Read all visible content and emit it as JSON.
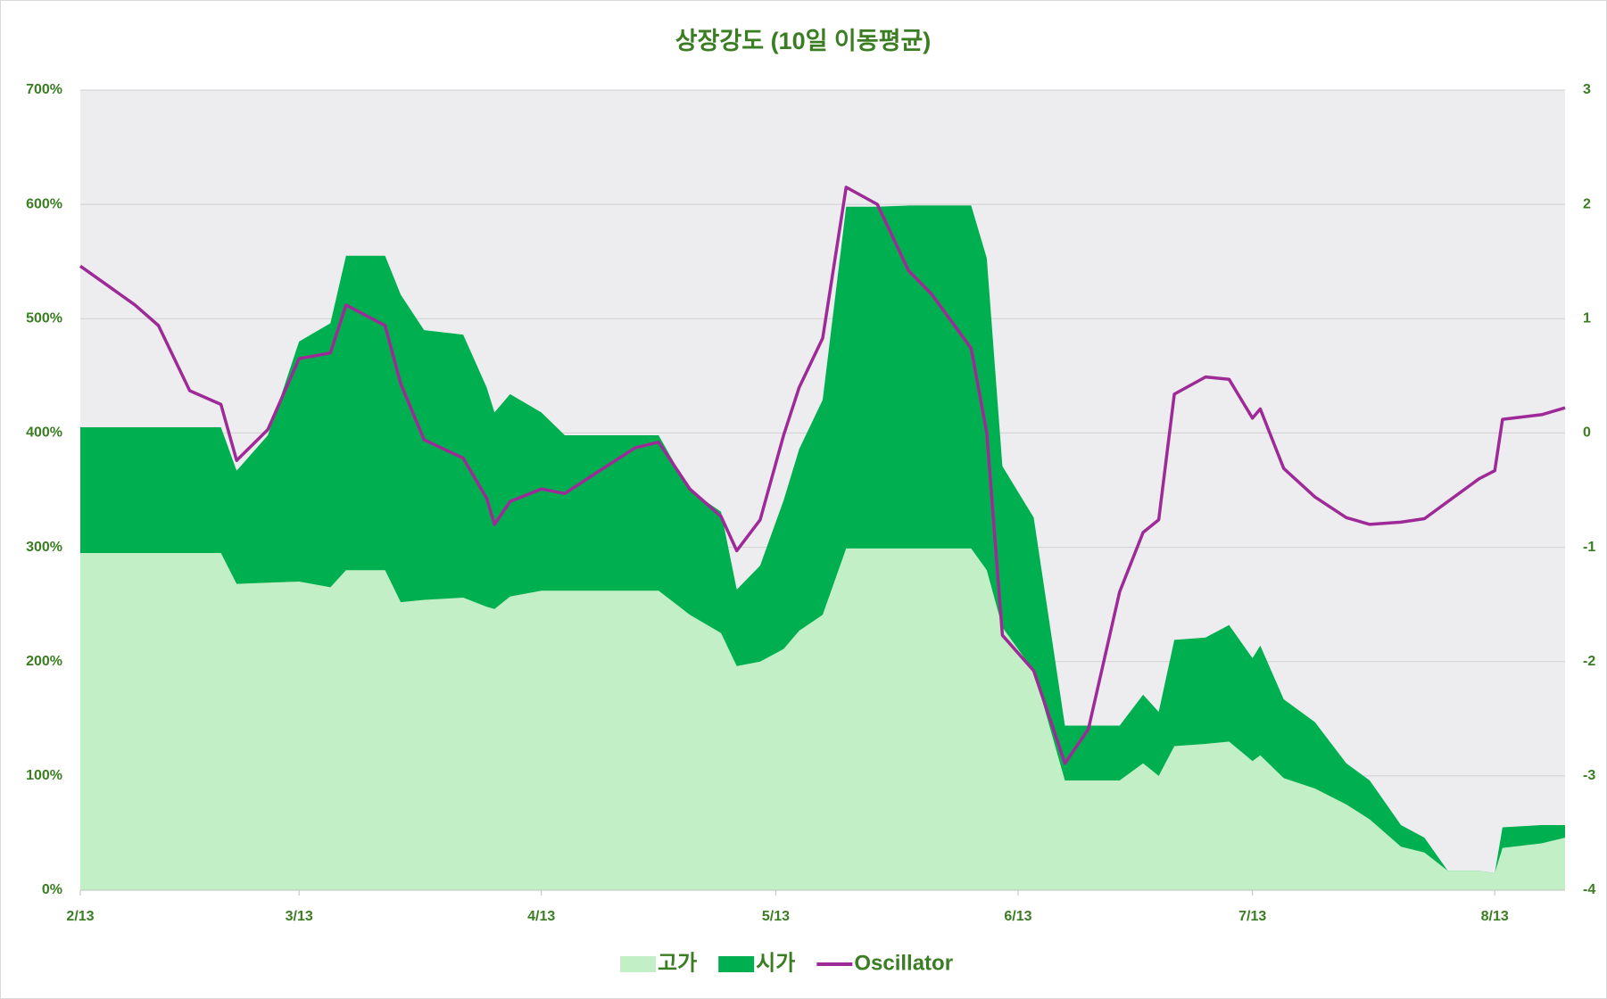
{
  "chart_data": {
    "type": "area",
    "title": "상장강도 (10일 이동평균)",
    "x": [
      "2/13",
      "2/20",
      "2/23",
      "2/27",
      "3/3",
      "3/5",
      "3/9",
      "3/13",
      "3/17",
      "3/19",
      "3/24",
      "3/26",
      "3/29",
      "4/3",
      "4/6",
      "4/7",
      "4/9",
      "4/13",
      "4/16",
      "4/20",
      "4/25",
      "4/28",
      "5/2",
      "5/6",
      "5/8",
      "5/11",
      "5/14",
      "5/16",
      "5/19",
      "5/22",
      "5/26",
      "5/30",
      "6/2",
      "6/7",
      "6/9",
      "6/11",
      "6/15",
      "6/19",
      "6/22",
      "6/26",
      "6/29",
      "7/1",
      "7/3",
      "7/7",
      "7/10",
      "7/13",
      "7/14",
      "7/17",
      "7/21",
      "7/25",
      "7/28",
      "8/1",
      "8/4",
      "8/7",
      "8/11",
      "8/13",
      "8/14",
      "8/19",
      "8/22"
    ],
    "xticks": [
      "2/13",
      "3/13",
      "4/13",
      "5/13",
      "6/13",
      "7/13",
      "8/13"
    ],
    "series": [
      {
        "name": "고가",
        "color": "#c2efc6",
        "values": [
          295,
          295,
          295,
          295,
          295,
          268,
          269,
          270,
          265,
          280,
          280,
          252,
          254,
          256,
          248,
          246,
          257,
          262,
          262,
          262,
          262,
          262,
          241,
          225,
          196,
          200,
          211,
          227,
          241,
          299,
          299,
          299,
          299,
          299,
          280,
          230,
          192,
          96,
          96,
          96,
          111,
          100,
          126,
          128,
          130,
          113,
          118,
          98,
          89,
          75,
          62,
          38,
          33,
          17,
          17,
          15,
          37,
          41,
          46
        ]
      },
      {
        "name": "시가",
        "color": "#00b050",
        "values": [
          405,
          405,
          405,
          405,
          405,
          367,
          398,
          480,
          496,
          555,
          555,
          521,
          490,
          486,
          440,
          418,
          434,
          418,
          398,
          398,
          398,
          398,
          350,
          331,
          263,
          284,
          341,
          386,
          429,
          598,
          598,
          599,
          599,
          599,
          553,
          371,
          326,
          144,
          144,
          144,
          171,
          156,
          219,
          221,
          232,
          203,
          214,
          167,
          147,
          111,
          96,
          57,
          46,
          17,
          17,
          15,
          55,
          57,
          57
        ]
      },
      {
        "name": "Oscillator",
        "color": "#9e2a98",
        "axis": "y2",
        "values": [
          1.46,
          1.12,
          0.94,
          0.37,
          0.25,
          -0.24,
          0.03,
          0.65,
          0.7,
          1.12,
          0.94,
          0.43,
          -0.06,
          -0.22,
          -0.57,
          -0.8,
          -0.6,
          -0.49,
          -0.53,
          -0.35,
          -0.13,
          -0.08,
          -0.49,
          -0.73,
          -1.03,
          -0.76,
          -0.02,
          0.4,
          0.83,
          2.15,
          2.0,
          1.42,
          1.21,
          0.74,
          0,
          -1.77,
          -2.08,
          -2.89,
          -2.59,
          -1.39,
          -0.87,
          -0.76,
          0.34,
          0.49,
          0.47,
          0.13,
          0.21,
          -0.31,
          -0.56,
          -0.74,
          -0.8,
          -0.78,
          -0.75,
          -0.6,
          -0.4,
          -0.33,
          0.12,
          0.16,
          0.22
        ]
      }
    ],
    "ylim": [
      0,
      700
    ],
    "yticks": [
      {
        "value": 0,
        "label": "0%"
      },
      {
        "value": 100,
        "label": "100%"
      },
      {
        "value": 200,
        "label": "200%"
      },
      {
        "value": 300,
        "label": "300%"
      },
      {
        "value": 400,
        "label": "400%"
      },
      {
        "value": 500,
        "label": "500%"
      },
      {
        "value": 600,
        "label": "600%"
      },
      {
        "value": 700,
        "label": "700%"
      }
    ],
    "y2lim": [
      -4,
      3
    ],
    "y2ticks": [
      -4,
      -3,
      -2,
      -1,
      0,
      1,
      2,
      3
    ],
    "grid": true,
    "legend": "bottom"
  }
}
